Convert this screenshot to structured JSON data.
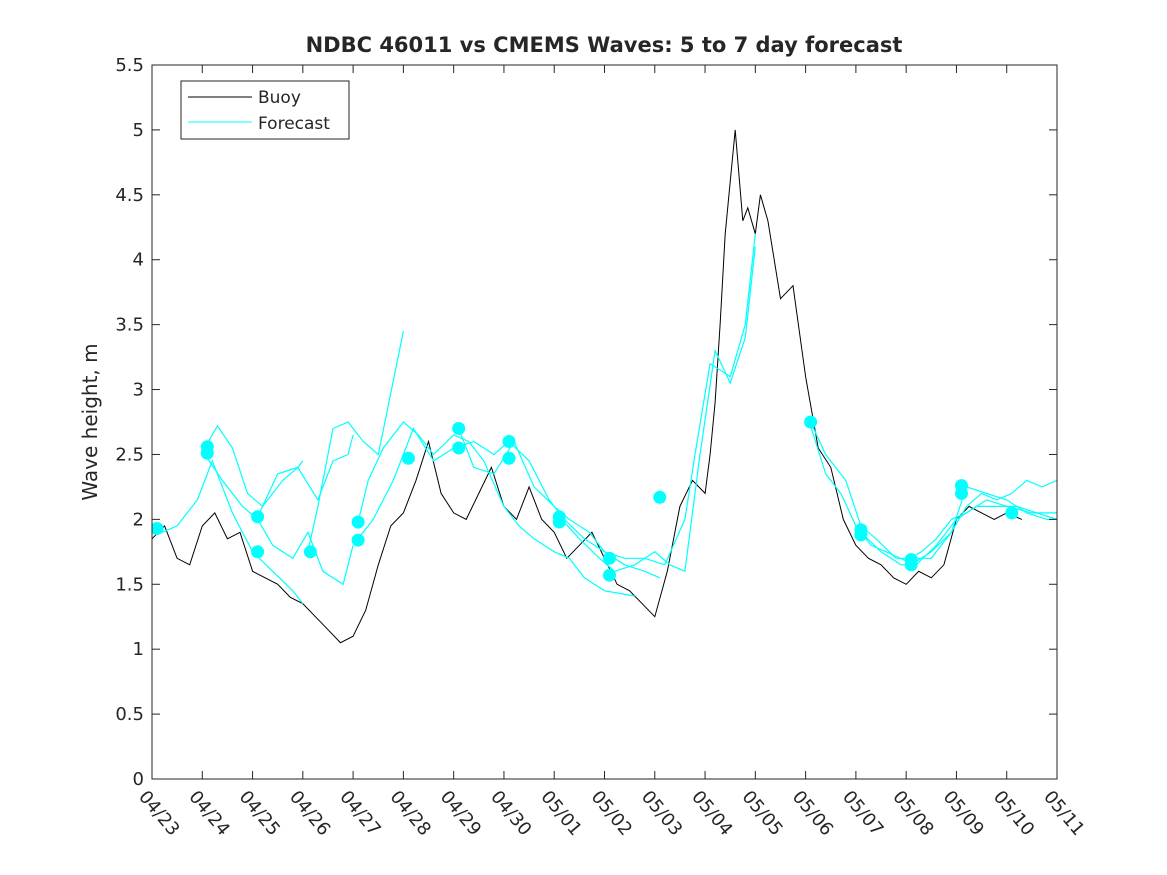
{
  "chart_data": {
    "type": "line",
    "title": "NDBC 46011 vs CMEMS Waves: 5 to 7 day forecast",
    "xlabel": "",
    "ylabel": "Wave height, m",
    "xlim": [
      0,
      18
    ],
    "ylim": [
      0,
      5.5
    ],
    "x_tick_labels": [
      "04/23",
      "04/24",
      "04/25",
      "04/26",
      "04/27",
      "04/28",
      "04/29",
      "04/30",
      "05/01",
      "05/02",
      "05/03",
      "05/04",
      "05/05",
      "05/06",
      "05/07",
      "05/08",
      "05/09",
      "05/10",
      "05/11"
    ],
    "y_ticks": [
      "0",
      "0.5",
      "1",
      "1.5",
      "2",
      "2.5",
      "3",
      "3.5",
      "4",
      "4.5",
      "5",
      "5.5"
    ],
    "grid": false,
    "legend": {
      "placement": "top-left",
      "entries": [
        "Buoy",
        "Forecast"
      ]
    },
    "colors": {
      "buoy": "#000000",
      "forecast": "#00FFFF"
    },
    "x_unit_note": "x values are days after 04/23",
    "buoy": {
      "name": "Buoy",
      "x": [
        0.0,
        0.25,
        0.5,
        0.75,
        1.0,
        1.25,
        1.5,
        1.75,
        2.0,
        2.25,
        2.5,
        2.75,
        3.0,
        3.25,
        3.5,
        3.75,
        4.0,
        4.25,
        4.5,
        4.75,
        5.0,
        5.25,
        5.5,
        5.75,
        6.0,
        6.25,
        6.5,
        6.75,
        7.0,
        7.25,
        7.5,
        7.75,
        8.0,
        8.25,
        8.5,
        8.75,
        9.0,
        9.25,
        9.5,
        9.75,
        10.0,
        10.25,
        10.5,
        10.75,
        11.0,
        11.1,
        11.2,
        11.3,
        11.4,
        11.5,
        11.6,
        11.75,
        11.85,
        12.0,
        12.1,
        12.25,
        12.5,
        12.75,
        13.0,
        13.25,
        13.5,
        13.75,
        14.0,
        14.25,
        14.5,
        14.75,
        15.0,
        15.25,
        15.5,
        15.75,
        16.0,
        16.25,
        16.5,
        16.75,
        17.0,
        17.3
      ],
      "y": [
        1.85,
        1.95,
        1.7,
        1.65,
        1.95,
        2.05,
        1.85,
        1.9,
        1.6,
        1.55,
        1.5,
        1.4,
        1.35,
        1.25,
        1.15,
        1.05,
        1.1,
        1.3,
        1.65,
        1.95,
        2.05,
        2.3,
        2.6,
        2.2,
        2.05,
        2.0,
        2.2,
        2.4,
        2.1,
        2.0,
        2.25,
        2.0,
        1.9,
        1.7,
        1.8,
        1.9,
        1.7,
        1.5,
        1.45,
        1.35,
        1.25,
        1.6,
        2.1,
        2.3,
        2.2,
        2.5,
        2.9,
        3.5,
        4.2,
        4.6,
        5.0,
        4.3,
        4.4,
        4.2,
        4.5,
        4.3,
        3.7,
        3.8,
        3.1,
        2.55,
        2.4,
        2.0,
        1.8,
        1.7,
        1.65,
        1.55,
        1.5,
        1.6,
        1.55,
        1.65,
        2.0,
        2.1,
        2.05,
        2.0,
        2.05,
        2.0
      ]
    },
    "forecast": [
      {
        "x": [
          0.0,
          0.2,
          0.5,
          0.9,
          1.2,
          1.6,
          2.0,
          2.4,
          2.8,
          3.0
        ],
        "y": [
          1.93,
          1.9,
          1.95,
          2.15,
          2.45,
          2.05,
          1.75,
          1.6,
          1.45,
          1.35
        ]
      },
      {
        "x": [
          1.05,
          1.3,
          1.6,
          1.9,
          2.2,
          2.6,
          2.9,
          3.0
        ],
        "y": [
          2.55,
          2.72,
          2.55,
          2.2,
          2.1,
          2.3,
          2.4,
          2.45
        ]
      },
      {
        "x": [
          1.05,
          1.4,
          1.8,
          2.1,
          2.4,
          2.8,
          3.1,
          3.4,
          3.8,
          4.0
        ],
        "y": [
          2.5,
          2.3,
          2.1,
          2.0,
          1.8,
          1.7,
          1.9,
          1.6,
          1.5,
          1.8
        ]
      },
      {
        "x": [
          2.1,
          2.5,
          2.9,
          3.3,
          3.6,
          3.9,
          4.0
        ],
        "y": [
          2.02,
          2.35,
          2.4,
          2.15,
          2.45,
          2.5,
          2.65
        ]
      },
      {
        "x": [
          3.1,
          3.3,
          3.6,
          3.9,
          4.2,
          4.5,
          5.0
        ],
        "y": [
          1.75,
          2.1,
          2.7,
          2.75,
          2.6,
          2.5,
          3.45
        ]
      },
      {
        "x": [
          4.1,
          4.3,
          4.6,
          5.0,
          5.3,
          5.6,
          6.0,
          6.3,
          6.6,
          7.0,
          7.3,
          7.6,
          8.0,
          8.3,
          8.6,
          9.0,
          9.3,
          9.6
        ],
        "y": [
          1.98,
          2.3,
          2.55,
          2.75,
          2.65,
          2.5,
          2.65,
          2.6,
          2.45,
          2.1,
          1.95,
          1.85,
          1.75,
          1.7,
          1.55,
          1.45,
          1.43,
          1.41
        ]
      },
      {
        "x": [
          4.1,
          4.4,
          4.8,
          5.2,
          5.6,
          6.0,
          6.4,
          6.8,
          7.1,
          7.5,
          7.9,
          8.2,
          8.6,
          9.0,
          9.4,
          9.8,
          10.1
        ],
        "y": [
          1.85,
          2.0,
          2.3,
          2.7,
          2.45,
          2.55,
          2.6,
          2.5,
          2.6,
          2.45,
          2.15,
          2.0,
          1.85,
          1.75,
          1.65,
          1.6,
          1.55
        ]
      },
      {
        "x": [
          6.1,
          6.4,
          6.8,
          7.2,
          7.6,
          8.0,
          8.3,
          8.7,
          9.0,
          9.4,
          9.8,
          10.2,
          10.6,
          10.8,
          11.1,
          11.5,
          11.8,
          12.0
        ],
        "y": [
          2.7,
          2.4,
          2.35,
          2.6,
          2.25,
          2.1,
          2.0,
          1.9,
          1.75,
          1.7,
          1.7,
          1.65,
          2.0,
          2.5,
          3.2,
          3.1,
          3.5,
          4.2
        ]
      },
      {
        "x": [
          8.1,
          8.5,
          8.9,
          9.2,
          9.6,
          10.0,
          10.3,
          10.6,
          10.9,
          11.2,
          11.5,
          11.8,
          12.0
        ],
        "y": [
          2.02,
          1.85,
          1.7,
          1.6,
          1.65,
          1.75,
          1.65,
          1.6,
          2.5,
          3.3,
          3.05,
          3.4,
          4.1
        ]
      },
      {
        "x": [
          13.1,
          13.4,
          13.8,
          14.1,
          14.4,
          14.8,
          15.1,
          15.5,
          15.9,
          16.2,
          16.5,
          16.8,
          17.1,
          17.4,
          17.7,
          18.0
        ],
        "y": [
          2.75,
          2.5,
          2.3,
          1.95,
          1.85,
          1.7,
          1.7,
          1.7,
          1.9,
          2.1,
          2.2,
          2.15,
          2.2,
          2.3,
          2.25,
          2.3
        ]
      },
      {
        "x": [
          13.1,
          13.4,
          13.7,
          14.0,
          14.3,
          14.6,
          15.0,
          15.3,
          15.6,
          15.9,
          16.2,
          16.6,
          17.0,
          17.5,
          18.0
        ],
        "y": [
          2.72,
          2.35,
          2.2,
          1.95,
          1.8,
          1.75,
          1.68,
          1.75,
          1.85,
          2.0,
          2.05,
          2.15,
          2.1,
          2.05,
          2.05
        ]
      },
      {
        "x": [
          14.1,
          14.5,
          14.9,
          15.2,
          15.6,
          16.0,
          16.4,
          16.8,
          17.2,
          17.6,
          18.0
        ],
        "y": [
          1.9,
          1.75,
          1.65,
          1.65,
          1.8,
          2.0,
          2.1,
          2.1,
          2.1,
          2.05,
          2.0
        ]
      },
      {
        "x": [
          15.1,
          15.5,
          15.9,
          16.2,
          16.6,
          17.0,
          17.4,
          17.8,
          18.0
        ],
        "y": [
          1.65,
          1.75,
          1.9,
          2.25,
          2.2,
          2.15,
          2.05,
          2.0,
          2.0
        ]
      }
    ],
    "forecast_markers": {
      "x": [
        0.1,
        1.1,
        1.1,
        2.1,
        2.1,
        3.15,
        4.1,
        4.1,
        5.1,
        6.1,
        6.1,
        7.1,
        7.1,
        8.1,
        8.1,
        9.1,
        9.1,
        10.1,
        13.1,
        14.1,
        14.1,
        15.1,
        15.1,
        16.1,
        16.1,
        17.1
      ],
      "y": [
        1.93,
        2.56,
        2.51,
        2.02,
        1.75,
        1.75,
        1.98,
        1.84,
        2.47,
        2.7,
        2.55,
        2.6,
        2.47,
        2.02,
        1.98,
        1.7,
        1.57,
        2.17,
        2.75,
        1.92,
        1.88,
        1.69,
        1.65,
        2.26,
        2.2,
        2.05
      ]
    }
  }
}
